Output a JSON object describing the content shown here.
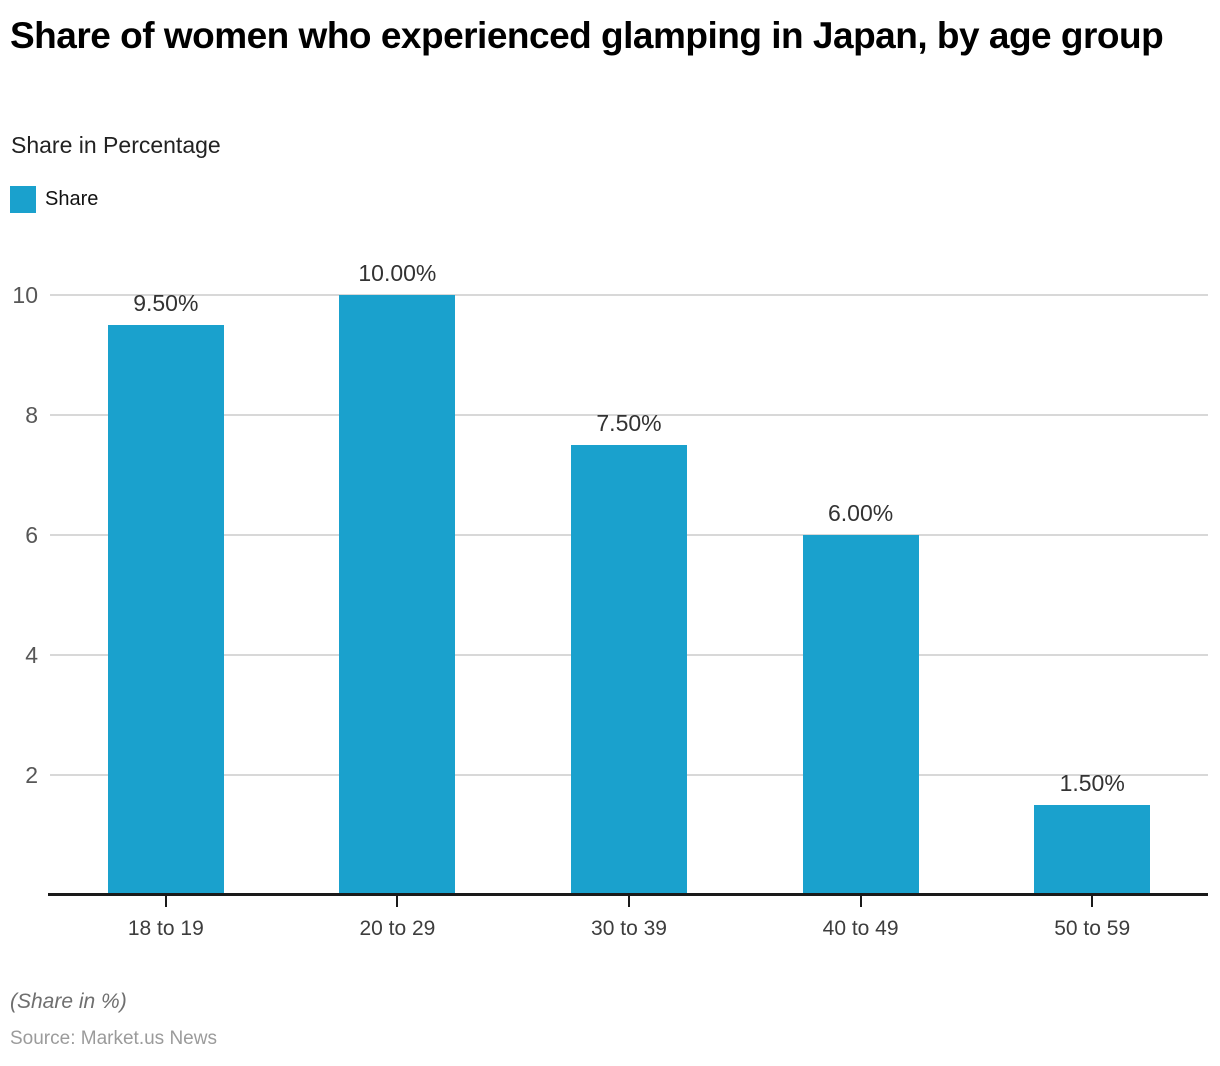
{
  "title": "Share of women who experienced glamping in Japan, by age group",
  "subtitle": "Share in Percentage",
  "legend": {
    "label": "Share"
  },
  "footer": {
    "note": "(Share in %)",
    "source": "Source: Market.us News"
  },
  "colors": {
    "bar": "#1aa1cd",
    "gridline": "#d8d8d8",
    "axis": "#1a1a1a",
    "value_label": "#333333"
  },
  "chart_data": {
    "type": "bar",
    "title": "Share of women who experienced glamping in Japan, by age group",
    "categories": [
      "18 to 19",
      "20 to 29",
      "30 to 39",
      "40 to 49",
      "50 to 59"
    ],
    "series": [
      {
        "name": "Share",
        "values": [
          9.5,
          10.0,
          7.5,
          6.0,
          1.5
        ]
      }
    ],
    "value_labels": [
      "9.50%",
      "10.00%",
      "7.50%",
      "6.00%",
      "1.50%"
    ],
    "xlabel": "",
    "ylabel": "",
    "ylim": [
      0,
      10
    ],
    "yticks": [
      2,
      4,
      6,
      8,
      10
    ],
    "grid": true,
    "legend_position": "top-left"
  }
}
